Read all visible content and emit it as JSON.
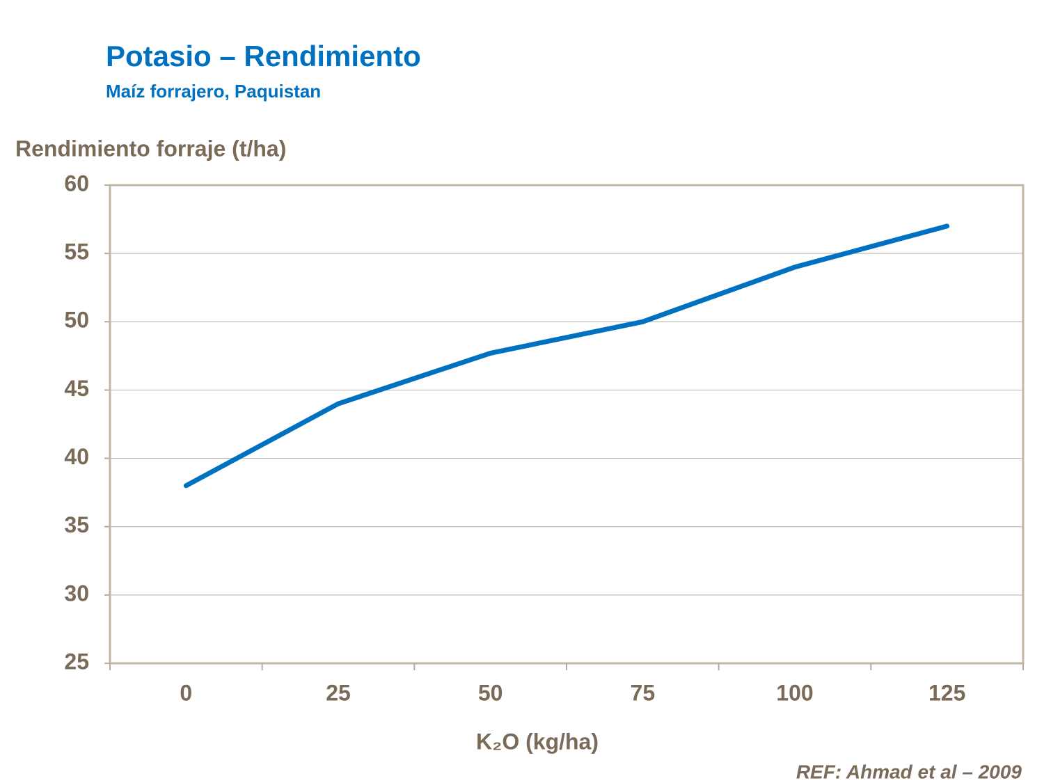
{
  "chart_data": {
    "type": "line",
    "title": "Potasio – Rendimiento",
    "subtitle": "Maíz forrajero, Paquistan",
    "y_label": "Rendimiento forraje (t/ha)",
    "x_label": "K₂O (kg/ha)",
    "reference": "REF:  Ahmad et al – 2009",
    "categories": [
      "0",
      "25",
      "50",
      "75",
      "100",
      "125"
    ],
    "values": [
      38,
      44,
      47.7,
      50,
      54,
      57
    ],
    "color": "#0070c0",
    "ylim": [
      25,
      60
    ],
    "yticks": [
      25,
      30,
      35,
      40,
      45,
      50,
      55,
      60
    ],
    "grid": true
  }
}
